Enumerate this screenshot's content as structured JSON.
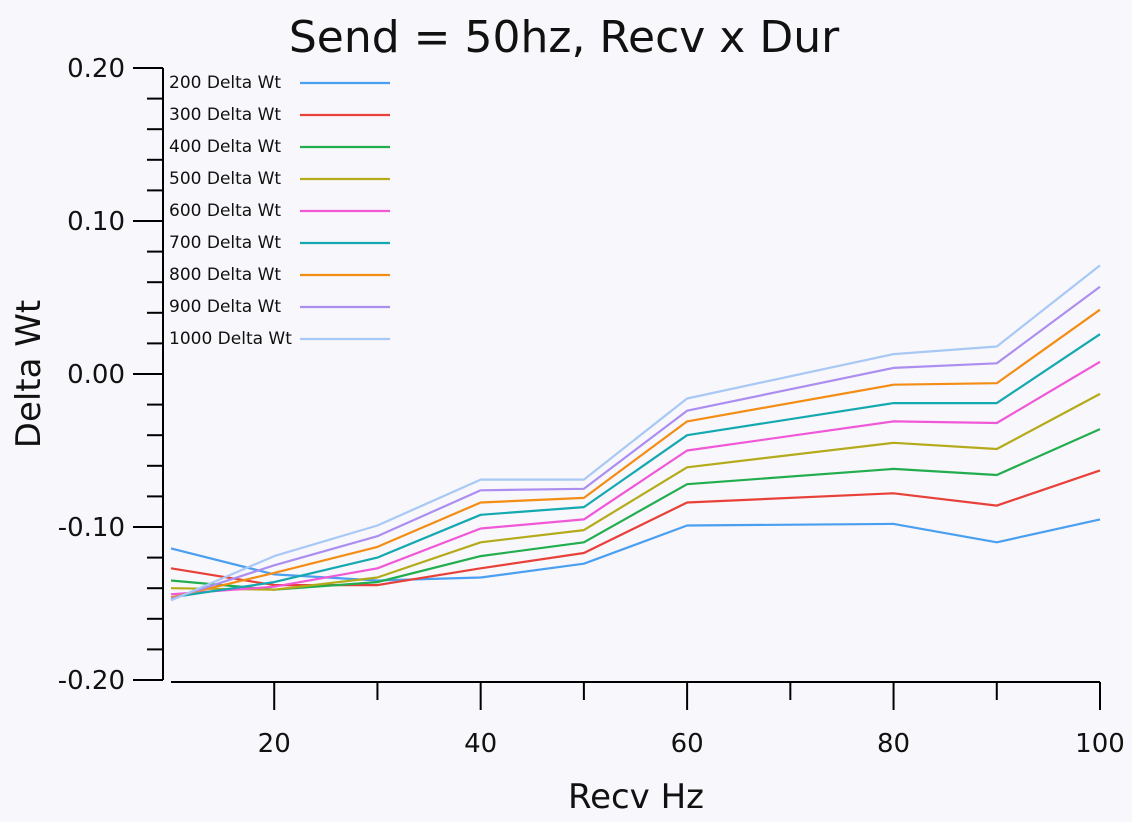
{
  "chart_data": {
    "type": "line",
    "title": "Send = 50hz, Recv x Dur",
    "xlabel": "Recv Hz",
    "ylabel": "Delta Wt",
    "xlim": [
      10,
      100
    ],
    "ylim": [
      -0.2,
      0.2
    ],
    "x_ticks": [
      20,
      40,
      60,
      80,
      100
    ],
    "x_tick_labels": [
      "20",
      "40",
      "60",
      "80",
      "100"
    ],
    "x_minor_ticks": [
      30,
      50,
      70,
      90
    ],
    "y_ticks": [
      0.2,
      0.1,
      0.0,
      -0.1,
      -0.2
    ],
    "y_tick_labels": [
      "0.20",
      "0.10",
      "0.00",
      "-0.10",
      "-0.20"
    ],
    "legend_position": "top-left",
    "x": [
      10,
      20,
      30,
      40,
      50,
      60,
      80,
      90,
      100
    ],
    "series": [
      {
        "name": "200 Delta Wt",
        "color": "#4a9ff0",
        "values": [
          -0.114,
          -0.131,
          -0.135,
          -0.133,
          -0.124,
          -0.099,
          -0.098,
          -0.11,
          -0.095
        ]
      },
      {
        "name": "300 Delta Wt",
        "color": "#e8413a",
        "values": [
          -0.127,
          -0.138,
          -0.138,
          -0.127,
          -0.117,
          -0.084,
          -0.078,
          -0.086,
          -0.063
        ]
      },
      {
        "name": "400 Delta Wt",
        "color": "#22ad4e",
        "values": [
          -0.135,
          -0.141,
          -0.136,
          -0.119,
          -0.11,
          -0.072,
          -0.062,
          -0.066,
          -0.036
        ]
      },
      {
        "name": "500 Delta Wt",
        "color": "#b4ab1a",
        "values": [
          -0.14,
          -0.141,
          -0.133,
          -0.11,
          -0.102,
          -0.061,
          -0.045,
          -0.049,
          -0.013
        ]
      },
      {
        "name": "600 Delta Wt",
        "color": "#f058d8",
        "values": [
          -0.144,
          -0.139,
          -0.127,
          -0.101,
          -0.095,
          -0.05,
          -0.031,
          -0.032,
          0.008
        ]
      },
      {
        "name": "700 Delta Wt",
        "color": "#14a8b0",
        "values": [
          -0.146,
          -0.136,
          -0.12,
          -0.092,
          -0.087,
          -0.04,
          -0.019,
          -0.019,
          0.026
        ]
      },
      {
        "name": "800 Delta Wt",
        "color": "#f38d14",
        "values": [
          -0.146,
          -0.13,
          -0.113,
          -0.084,
          -0.081,
          -0.031,
          -0.007,
          -0.006,
          0.042
        ]
      },
      {
        "name": "900 Delta Wt",
        "color": "#ab8ef0",
        "values": [
          -0.147,
          -0.125,
          -0.106,
          -0.076,
          -0.075,
          -0.024,
          0.004,
          0.007,
          0.057
        ]
      },
      {
        "name": "1000 Delta Wt",
        "color": "#a8c8f5",
        "values": [
          -0.148,
          -0.119,
          -0.099,
          -0.069,
          -0.069,
          -0.016,
          0.013,
          0.018,
          0.071
        ]
      }
    ]
  }
}
